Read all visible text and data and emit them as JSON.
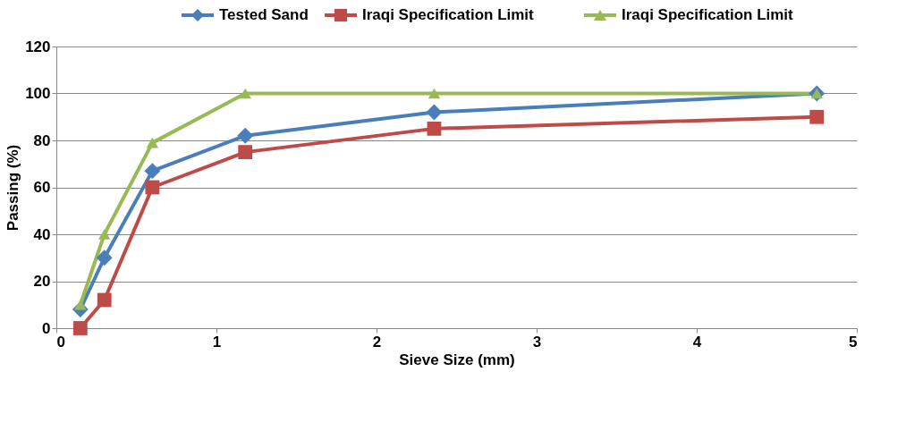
{
  "chart_data": {
    "type": "line",
    "xlabel": "Sieve Size (mm)",
    "ylabel": "Passing (%)",
    "series": [
      {
        "name": "Tested Sand",
        "color": "#4a7ebb",
        "marker": "diamond",
        "x": [
          0.15,
          0.3,
          0.6,
          1.18,
          2.36,
          4.75
        ],
        "values": [
          8,
          30,
          67,
          82,
          92,
          100
        ]
      },
      {
        "name": "Iraqi Specification Limit",
        "color": "#be4b48",
        "marker": "square",
        "x": [
          0.15,
          0.3,
          0.6,
          1.18,
          2.36,
          4.75
        ],
        "values": [
          0,
          12,
          60,
          75,
          85,
          90
        ]
      },
      {
        "name": "Iraqi Specification Limit",
        "color": "#98b954",
        "marker": "triangle",
        "x": [
          0.15,
          0.3,
          0.6,
          1.18,
          2.36,
          4.75
        ],
        "values": [
          10,
          40,
          79,
          100,
          100,
          100
        ]
      }
    ],
    "xlim": [
      0,
      5
    ],
    "xticks": [
      0,
      1,
      2,
      3,
      4,
      5
    ],
    "ylim": [
      0,
      120
    ],
    "yticks": [
      0,
      20,
      40,
      60,
      80,
      100,
      120
    ],
    "grid": "y",
    "legend": "top",
    "line_style": "solid"
  }
}
